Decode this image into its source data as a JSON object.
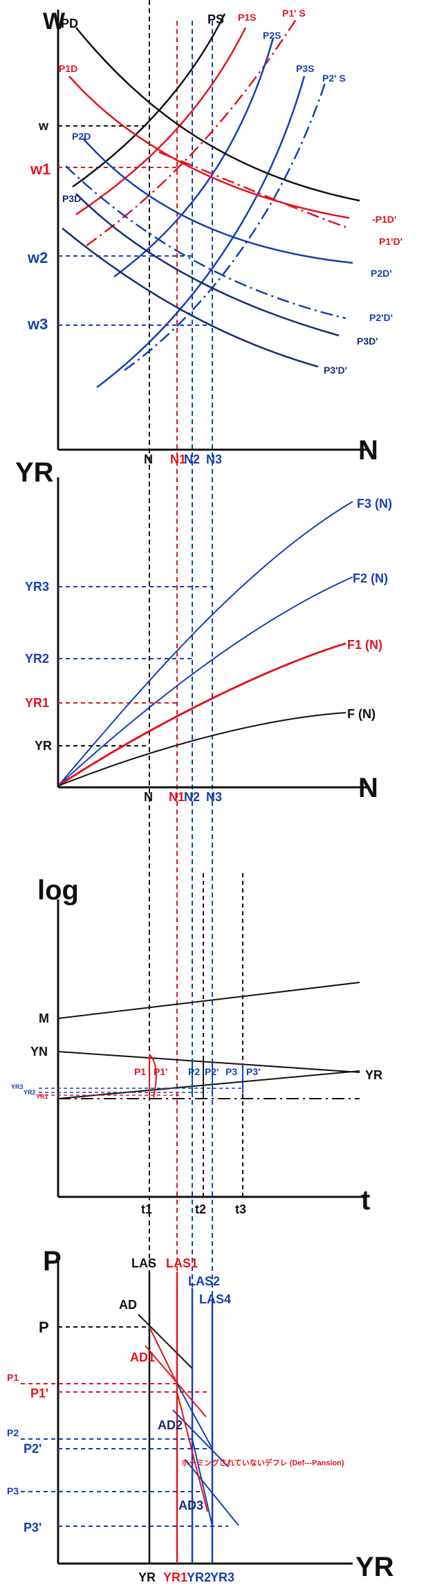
{
  "colors": {
    "black": "#111111",
    "red": "#e3141e",
    "blue": "#1540b0",
    "navy": "#142c7a"
  },
  "panel1": {
    "axis_y": "W",
    "axis_x": "N",
    "curves": {
      "pd": "PD",
      "ps": "PS",
      "p1s": "P1S",
      "p1ps": "P1' S",
      "p2s": "P2S",
      "p3s": "P3S",
      "p2ps": "P2' S",
      "p1d": "P1D",
      "p2d": "P2D",
      "p3d": "P3D",
      "p1d_prime": "-P1D'",
      "p1pd_prime": "P1'D'",
      "p2d_prime": "P2D'",
      "p2pd_prime": "P2'D'",
      "p3d_prime": "P3D'",
      "p3pd_prime": "P3'D'"
    },
    "y_ticks": {
      "w": "w",
      "w1": "w1",
      "w2": "w2",
      "w3": "w3"
    },
    "x_ticks": {
      "n": "N",
      "n1": "N1",
      "n2": "N2",
      "n3": "N3"
    }
  },
  "panel2": {
    "axis_y": "YR",
    "axis_x": "N",
    "curves": {
      "f3": "F3 (N)",
      "f2": "F2 (N)",
      "f1": "F1 (N)",
      "f": "F (N)"
    },
    "y_ticks": {
      "yr3": "YR3",
      "yr2": "YR2",
      "yr1": "YR1",
      "yr": "YR"
    },
    "x_ticks": {
      "n": "N",
      "n1": "N1",
      "n2": "N2",
      "n3": "N3"
    }
  },
  "panel3": {
    "axis_y": "log",
    "axis_x": "t",
    "lines": {
      "m": "M",
      "yn": "YN",
      "yr": "YR"
    },
    "gap_labels": {
      "p1": "P1",
      "p1p": "P1'",
      "p2": "P2",
      "p2p": "P2'",
      "p3": "P3",
      "p3p": "P3'"
    },
    "small_ticks": {
      "yr3": "YR3",
      "yr2": "YR2",
      "yr1": "YR1"
    },
    "x_ticks": {
      "t1": "t1",
      "t2": "t2",
      "t3": "t3"
    }
  },
  "panel4": {
    "axis_y": "P",
    "axis_x": "YR",
    "verticals": {
      "las": "LAS",
      "las1": "LAS1",
      "las2": "LAS2",
      "las4": "LAS4"
    },
    "demand": {
      "ad": "AD",
      "ad1": "AD1",
      "ad2": "AD2",
      "ad3": "AD3"
    },
    "y_ticks": {
      "p": "P",
      "p1": "P1",
      "p1p": "P1'",
      "p2": "P2",
      "p2p": "P2'",
      "p3": "P3",
      "p3p": "P3'"
    },
    "x_ticks": {
      "yr": "YR",
      "yr1": "YR1",
      "yr2": "YR2",
      "yr3": "YR3"
    },
    "annotation": "ホーミングされていないデフレ (Def---Pansion)"
  }
}
